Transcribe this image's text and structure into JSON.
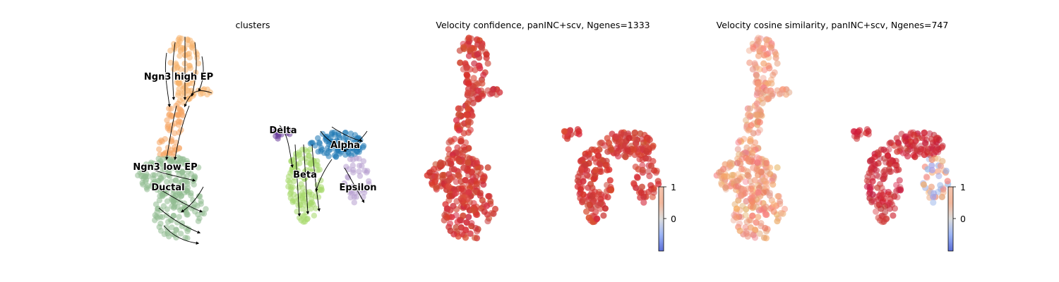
{
  "chart_data": [
    {
      "type": "scatter",
      "title": "clusters",
      "xlabel": "",
      "ylabel": "",
      "grid": false,
      "overlay": "velocity-streamlines",
      "clusters": [
        {
          "name": "Ngn3 high EP",
          "color": "#f7b26b"
        },
        {
          "name": "Ngn3 low EP",
          "color": "#f6a565"
        },
        {
          "name": "Ductal",
          "color": "#8fbc8f"
        },
        {
          "name": "Delta",
          "color": "#6a3d9a"
        },
        {
          "name": "Beta",
          "color": "#a6d96a"
        },
        {
          "name": "Alpha",
          "color": "#1f78b4"
        },
        {
          "name": "Epsilon",
          "color": "#b79fd0"
        }
      ]
    },
    {
      "type": "scatter",
      "title": "Velocity confidence, panINC+scv, Ngenes=1333",
      "xlabel": "",
      "ylabel": "",
      "grid": false,
      "colorbar": {
        "ticks": [
          "1",
          "0"
        ],
        "range": [
          -1,
          1
        ],
        "colormap": "coolwarm"
      },
      "color_value_approx": 0.85
    },
    {
      "type": "scatter",
      "title": "Velocity cosine similarity, panINC+scv, Ngenes=747",
      "xlabel": "",
      "ylabel": "",
      "grid": false,
      "colorbar": {
        "ticks": [
          "1",
          "0"
        ],
        "range": [
          -1,
          1
        ],
        "colormap": "coolwarm"
      },
      "color_value_approx": 0.45
    }
  ]
}
